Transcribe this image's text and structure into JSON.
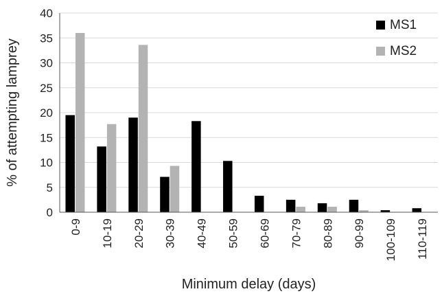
{
  "chart_data": {
    "type": "bar",
    "title": "",
    "xlabel": "Minimum delay (days)",
    "ylabel": "% of attempting lamprey",
    "ylim": [
      0,
      40
    ],
    "yticks": [
      0,
      5,
      10,
      15,
      20,
      25,
      30,
      35,
      40
    ],
    "grid": "horizontal",
    "legend_position": "top-right",
    "categories": [
      "0-9",
      "10-19",
      "20-29",
      "30-39",
      "40-49",
      "50-59",
      "60-69",
      "70-79",
      "80-89",
      "90-99",
      "100-109",
      "110-119"
    ],
    "series": [
      {
        "name": "MS1",
        "color": "#000000",
        "values": [
          19.5,
          13.2,
          19.0,
          7.1,
          18.3,
          10.3,
          3.3,
          2.5,
          1.8,
          2.5,
          0.4,
          0.8
        ]
      },
      {
        "name": "MS2",
        "color": "#b3b3b3",
        "values": [
          36.0,
          17.7,
          33.6,
          9.3,
          0.0,
          0.0,
          0.0,
          1.1,
          1.1,
          0.4,
          0.0,
          0.0
        ]
      }
    ]
  }
}
